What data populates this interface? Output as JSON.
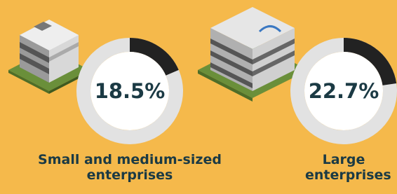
{
  "chart_data": [
    {
      "type": "donut",
      "categories": [
        "Small and medium-sized enterprises"
      ],
      "values": [
        18.5
      ],
      "value_labels": [
        "18.5%"
      ],
      "color": "#222222",
      "track_color": "#e2e2e2"
    },
    {
      "type": "donut",
      "categories": [
        "Large enterprises"
      ],
      "values": [
        22.7
      ],
      "value_labels": [
        "22.7%"
      ],
      "color": "#222222",
      "track_color": "#e2e2e2"
    }
  ]
}
